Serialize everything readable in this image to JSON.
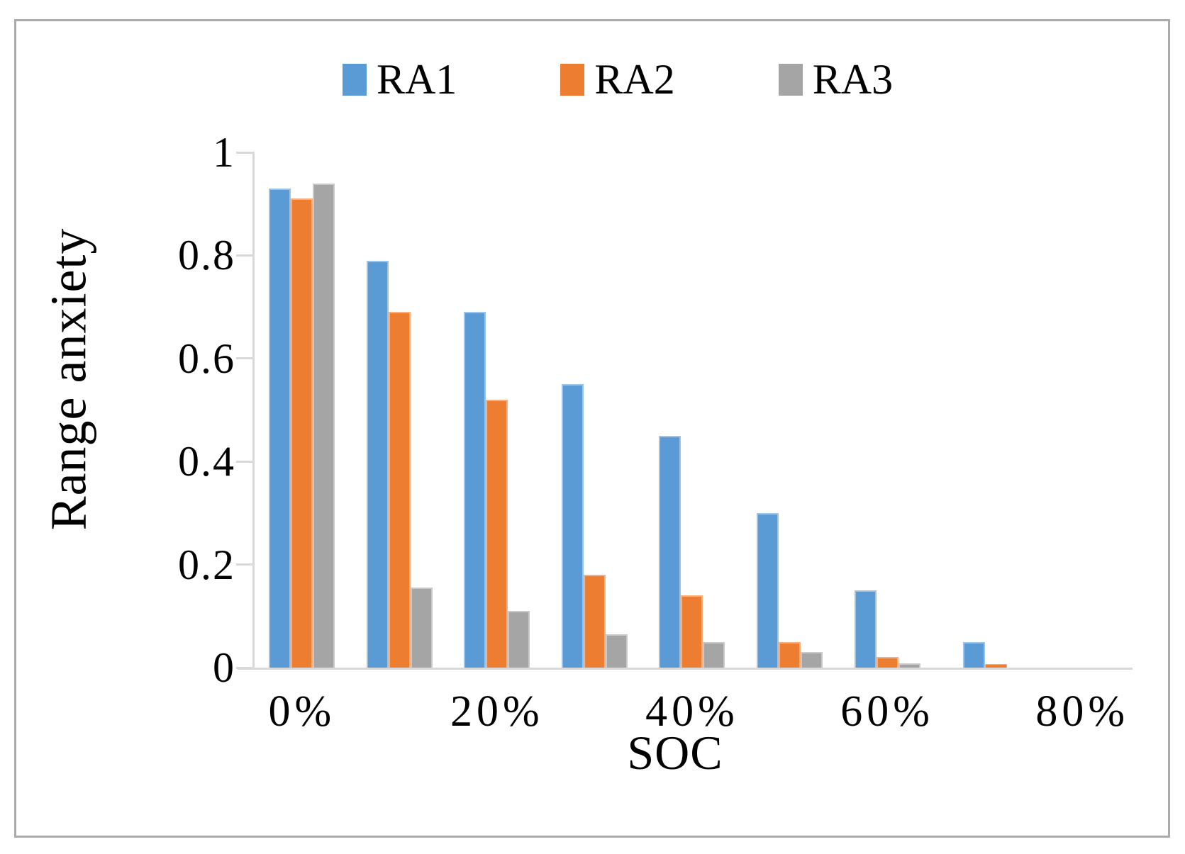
{
  "figure": {
    "background_color": "#FFFFFF",
    "border_color": "#ABABAB",
    "axis_color": "#D9D9D9",
    "text_color": "#000000"
  },
  "chart_data": {
    "type": "bar",
    "title": "",
    "xlabel": "SOC",
    "ylabel": "Range anxiety",
    "categories": [
      "0%",
      "10%",
      "20%",
      "30%",
      "40%",
      "50%",
      "60%",
      "70%",
      "80%"
    ],
    "x_tick_labels": [
      "0%",
      "",
      "20%",
      "",
      "40%",
      "",
      "60%",
      "",
      "80%"
    ],
    "y_ticks": [
      1,
      0.8,
      0.6,
      0.4,
      0.2,
      0
    ],
    "y_tick_labels": [
      "1",
      "0.8",
      "0.6",
      "0.4",
      "0.2",
      "0"
    ],
    "ylim": [
      0,
      1
    ],
    "grid": false,
    "legend_position": "top-center",
    "legend": [
      "RA1",
      "RA2",
      "RA3"
    ],
    "series": [
      {
        "name": "RA1",
        "color": "#5B9BD5",
        "border_color": "#9DC3E6",
        "values": [
          0.93,
          0.79,
          0.69,
          0.55,
          0.45,
          0.3,
          0.15,
          0.05,
          0
        ]
      },
      {
        "name": "RA2",
        "color": "#ED7D31",
        "border_color": "#F4B183",
        "values": [
          0.91,
          0.69,
          0.52,
          0.18,
          0.14,
          0.05,
          0.02,
          0.007,
          0
        ]
      },
      {
        "name": "RA3",
        "color": "#A5A5A5",
        "border_color": "#C9C9C9",
        "values": [
          0.94,
          0.155,
          0.11,
          0.065,
          0.05,
          0.03,
          0.008,
          0,
          0
        ]
      }
    ]
  }
}
